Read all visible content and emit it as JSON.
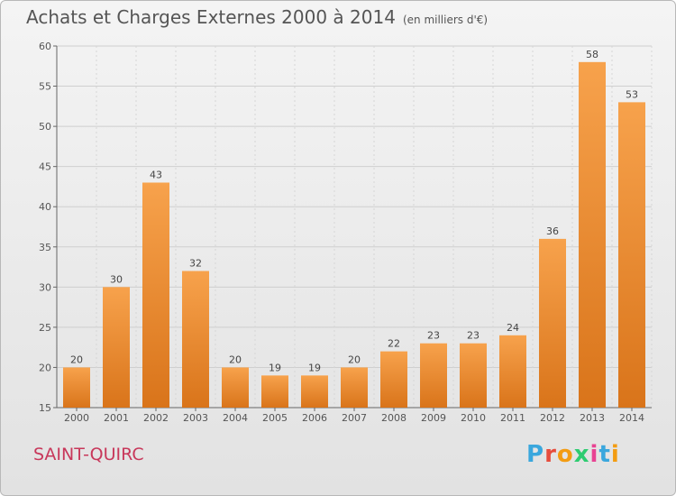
{
  "title": "Achats et Charges Externes 2000 à 2014",
  "subtitle": "(en milliers d'€)",
  "place": "SAINT-QUIRC",
  "logo": {
    "letters": [
      "P",
      "r",
      "o",
      "x",
      "i",
      "t",
      "i"
    ],
    "colors": [
      "#3aa7dd",
      "#e74c3c",
      "#f39c12",
      "#2ecc71",
      "#e84393",
      "#3aa7dd",
      "#f39c12"
    ]
  },
  "chart_data": {
    "type": "bar",
    "categories": [
      "2000",
      "2001",
      "2002",
      "2003",
      "2004",
      "2005",
      "2006",
      "2007",
      "2008",
      "2009",
      "2010",
      "2011",
      "2012",
      "2013",
      "2014"
    ],
    "values": [
      20,
      30,
      43,
      32,
      20,
      19,
      19,
      20,
      22,
      23,
      23,
      24,
      36,
      58,
      53
    ],
    "ylim": [
      15,
      60
    ],
    "yticks": [
      15,
      20,
      25,
      30,
      35,
      40,
      45,
      50,
      55,
      60
    ],
    "grid": true,
    "bar_color": "#ee8a2c"
  }
}
